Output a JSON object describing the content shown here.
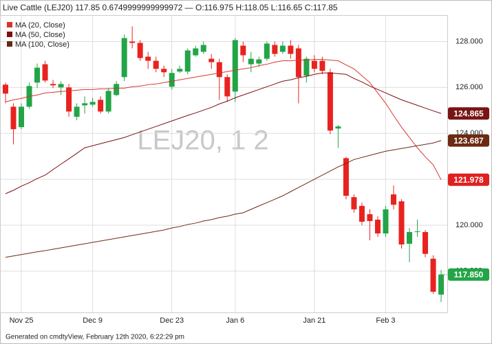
{
  "chart_data": {
    "type": "candlestick",
    "title": "Live Cattle (LEJ20) 117.85 0.6749999999999972 — O:116.975 H:118.05 L:116.65 C:117.85",
    "watermark": "LEJ20, 1 2",
    "footer": "Generated on cmdtyView, February 12th 2020, 6:22:29 pm",
    "categories": [
      null,
      null,
      "Nov 25",
      null,
      null,
      null,
      null,
      null,
      null,
      null,
      null,
      "Dec 9",
      null,
      null,
      null,
      null,
      null,
      null,
      null,
      null,
      null,
      "Dec 23",
      null,
      null,
      null,
      null,
      null,
      null,
      null,
      "Jan 6",
      null,
      null,
      null,
      null,
      null,
      null,
      null,
      null,
      null,
      "Jan 21",
      null,
      null,
      null,
      null,
      null,
      null,
      null,
      null,
      "Feb 3",
      null,
      null,
      null,
      null,
      null,
      null,
      null
    ],
    "ohlc": {
      "up_color": "#22a547",
      "down_color": "#e8231f",
      "last_label": "117.850",
      "open": [
        126.12,
        125.16,
        124.27,
        125.16,
        126.21,
        127.01,
        126.15,
        126.0,
        126.0,
        124.72,
        125.22,
        125.25,
        125.46,
        124.95,
        125.67,
        126.45,
        128.0,
        127.94,
        127.34,
        127.16,
        126.81,
        126.03,
        126.69,
        126.69,
        127.4,
        127.55,
        127.25,
        127.1,
        126.45,
        125.82,
        127.82,
        127.01,
        127.04,
        127.25,
        127.85,
        127.55,
        127.82,
        127.7,
        126.51,
        127.16,
        127.16,
        126.66,
        124.21,
        122.92,
        121.22,
        120.84,
        120.48,
        120.24,
        119.64,
        121.34,
        121.04,
        119.19,
        119.7,
        119.7,
        118.54,
        116.975
      ],
      "high": [
        126.21,
        125.31,
        125.31,
        126.21,
        127.04,
        127.16,
        126.33,
        126.27,
        126.15,
        125.31,
        125.61,
        125.55,
        125.61,
        125.97,
        126.27,
        128.3,
        128.66,
        128.06,
        127.55,
        127.34,
        126.95,
        126.81,
        126.95,
        127.7,
        127.82,
        128.0,
        127.46,
        127.25,
        126.57,
        128.15,
        128.0,
        127.55,
        127.34,
        128.0,
        128.0,
        128.0,
        128.06,
        127.85,
        127.34,
        127.4,
        127.34,
        126.81,
        124.36,
        122.98,
        121.34,
        120.98,
        120.69,
        120.39,
        120.84,
        121.73,
        121.13,
        119.88,
        120.24,
        119.79,
        118.69,
        118.05
      ],
      "low": [
        125.31,
        123.52,
        124.18,
        125.07,
        125.97,
        126.21,
        125.97,
        125.67,
        124.72,
        124.57,
        124.86,
        125.16,
        124.86,
        124.86,
        125.61,
        126.27,
        127.7,
        127.16,
        126.81,
        126.66,
        126.45,
        125.91,
        126.63,
        126.57,
        127.34,
        127.46,
        126.81,
        125.46,
        125.37,
        125.37,
        127.1,
        126.66,
        126.89,
        127.16,
        127.34,
        127.46,
        127.25,
        125.31,
        126.21,
        126.66,
        126.57,
        123.97,
        123.37,
        121.13,
        120.54,
        120.0,
        119.34,
        119.49,
        119.49,
        120.69,
        118.98,
        118.39,
        119.49,
        118.6,
        117.01,
        116.65
      ],
      "close": [
        125.73,
        124.18,
        125.16,
        126.06,
        126.86,
        126.3,
        126.09,
        126.15,
        124.95,
        125.16,
        125.31,
        125.37,
        124.95,
        125.85,
        126.15,
        128.15,
        127.94,
        127.28,
        127.16,
        126.81,
        126.66,
        126.63,
        126.81,
        127.61,
        127.7,
        127.85,
        127.1,
        126.45,
        125.61,
        128.06,
        127.4,
        127.25,
        127.22,
        127.91,
        127.46,
        127.82,
        127.46,
        126.45,
        127.25,
        126.81,
        126.72,
        124.12,
        124.3,
        121.28,
        120.69,
        120.15,
        120.18,
        119.64,
        120.69,
        120.89,
        119.16,
        119.7,
        119.73,
        118.75,
        117.1,
        117.85
      ]
    },
    "series": [
      {
        "name": "MA (20, Close)",
        "color": "#d9342b",
        "tag_color": "#e02020",
        "values": [
          125.37,
          125.46,
          125.52,
          125.61,
          125.67,
          125.76,
          125.79,
          125.82,
          125.85,
          125.88,
          125.91,
          125.91,
          125.94,
          125.94,
          125.97,
          125.97,
          126.03,
          126.06,
          126.12,
          126.15,
          126.21,
          126.27,
          126.33,
          126.39,
          126.45,
          126.51,
          126.57,
          126.63,
          126.69,
          126.75,
          126.81,
          126.86,
          126.95,
          127.01,
          127.1,
          127.16,
          127.16,
          127.19,
          127.19,
          127.22,
          127.22,
          127.19,
          127.16,
          126.98,
          126.81,
          126.51,
          126.21,
          125.76,
          125.31,
          124.78,
          124.27,
          123.82,
          123.37,
          122.98,
          122.63,
          121.978
        ]
      },
      {
        "name": "MA (50, Close)",
        "color": "#7a1010",
        "tag_color": "#7a1414",
        "values": [
          121.37,
          121.52,
          121.7,
          121.85,
          122.03,
          122.18,
          122.42,
          122.66,
          122.89,
          123.13,
          123.37,
          123.46,
          123.55,
          123.64,
          123.73,
          123.82,
          123.94,
          124.06,
          124.18,
          124.3,
          124.42,
          124.54,
          124.66,
          124.78,
          124.89,
          125.01,
          125.13,
          125.28,
          125.4,
          125.55,
          125.67,
          125.79,
          125.91,
          126.03,
          126.15,
          126.27,
          126.33,
          126.42,
          126.48,
          126.57,
          126.63,
          126.63,
          126.6,
          126.57,
          126.39,
          126.24,
          126.06,
          125.91,
          125.76,
          125.61,
          125.46,
          125.34,
          125.22,
          125.1,
          124.98,
          124.865
        ]
      },
      {
        "name": "MA (100, Close)",
        "color": "#6b2a10",
        "tag_color": "#6b2a12",
        "values": [
          118.6,
          118.66,
          118.72,
          118.78,
          118.84,
          118.89,
          118.95,
          119.01,
          119.07,
          119.13,
          119.19,
          119.25,
          119.31,
          119.37,
          119.43,
          119.49,
          119.55,
          119.61,
          119.67,
          119.73,
          119.79,
          119.88,
          119.94,
          120.03,
          120.09,
          120.18,
          120.24,
          120.33,
          120.39,
          120.48,
          120.54,
          120.69,
          120.84,
          120.98,
          121.13,
          121.28,
          121.46,
          121.64,
          121.82,
          122.0,
          122.18,
          122.36,
          122.54,
          122.69,
          122.86,
          122.95,
          123.04,
          123.13,
          123.22,
          123.28,
          123.34,
          123.4,
          123.46,
          123.52,
          123.58,
          123.687
        ]
      }
    ],
    "ylim": [
      116.2,
      129.15
    ],
    "yticks": [
      {
        "value": 118,
        "label": "118.000"
      },
      {
        "value": 120,
        "label": "120.000"
      },
      {
        "value": 122,
        "label": "122.000"
      },
      {
        "value": 124,
        "label": "124.000"
      },
      {
        "value": 126,
        "label": "126.000"
      },
      {
        "value": 128,
        "label": "128.000"
      }
    ],
    "grid": true
  }
}
